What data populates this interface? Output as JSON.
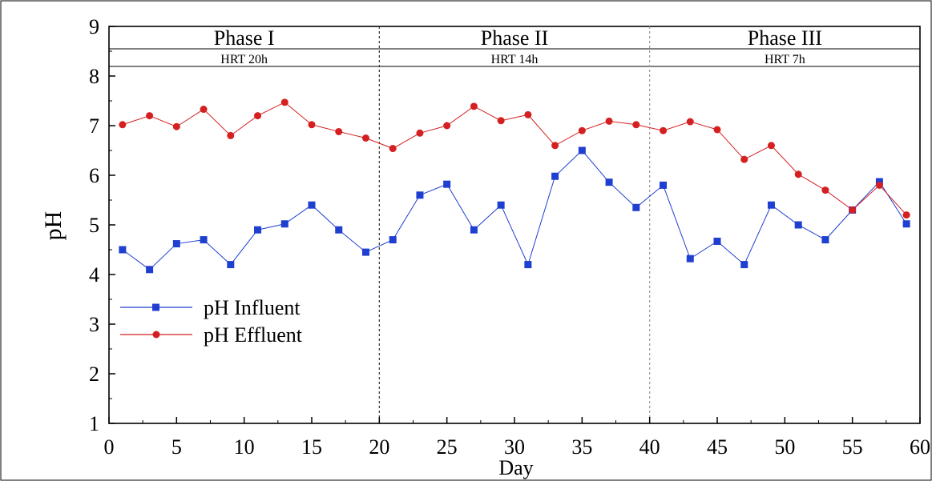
{
  "chart_data": {
    "type": "line",
    "xlabel": "Day",
    "ylabel": "pH",
    "xlim": [
      0,
      60
    ],
    "ylim": [
      1,
      9
    ],
    "xticks": [
      "0",
      "5",
      "10",
      "15",
      "20",
      "25",
      "30",
      "35",
      "40",
      "45",
      "50",
      "55",
      "60"
    ],
    "yticks": [
      "1",
      "2",
      "3",
      "4",
      "5",
      "6",
      "7",
      "8",
      "9"
    ],
    "grid": false,
    "legend_position": "lower-left",
    "phases": [
      {
        "label": "Phase I",
        "hrt": "HRT 20h",
        "start": 0,
        "end": 20
      },
      {
        "label": "Phase II",
        "hrt": "HRT 14h",
        "start": 20,
        "end": 40
      },
      {
        "label": "Phase III",
        "hrt": "HRT 7h",
        "start": 40,
        "end": 60
      }
    ],
    "x": [
      1,
      3,
      5,
      7,
      9,
      11,
      13,
      15,
      17,
      19,
      21,
      23,
      25,
      27,
      29,
      31,
      33,
      35,
      37,
      39,
      41,
      43,
      45,
      47,
      49,
      51,
      53,
      55,
      57,
      59
    ],
    "series": [
      {
        "name": "pH Influent",
        "color": "#1f3fd0",
        "marker": "square",
        "values": [
          4.5,
          4.1,
          4.62,
          4.7,
          4.2,
          4.9,
          5.02,
          5.4,
          4.9,
          4.45,
          4.7,
          5.6,
          5.82,
          4.9,
          5.4,
          4.2,
          5.98,
          6.5,
          5.86,
          5.35,
          5.8,
          4.32,
          4.67,
          4.2,
          5.4,
          5.0,
          4.7,
          5.3,
          5.87,
          5.02
        ]
      },
      {
        "name": "pH Effluent",
        "color": "#d42020",
        "marker": "circle",
        "values": [
          7.02,
          7.2,
          6.98,
          7.33,
          6.8,
          7.2,
          7.47,
          7.02,
          6.88,
          6.75,
          6.54,
          6.85,
          7.0,
          7.39,
          7.1,
          7.22,
          6.6,
          6.9,
          7.09,
          7.02,
          6.9,
          7.08,
          6.92,
          6.32,
          6.6,
          6.02,
          5.7,
          5.3,
          5.8,
          5.2
        ]
      }
    ]
  }
}
